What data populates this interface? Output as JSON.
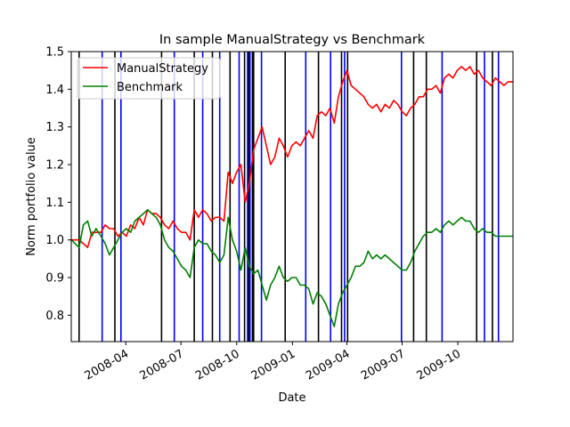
{
  "chart_data": {
    "type": "line",
    "title": "In sample ManualStrategy vs Benchmark",
    "xlabel": "Date",
    "ylabel": "Norm portfolio value",
    "xlim": [
      "2008-01-02",
      "2009-12-31"
    ],
    "ylim": [
      0.73,
      1.5
    ],
    "grid": false,
    "legend": "upper-left",
    "x_ticks": [
      {
        "date": "2008-04-01",
        "label": "2008-04"
      },
      {
        "date": "2008-07-01",
        "label": "2008-07"
      },
      {
        "date": "2008-10-01",
        "label": "2008-10"
      },
      {
        "date": "2009-01-01",
        "label": "2009-01"
      },
      {
        "date": "2009-04-01",
        "label": "2009-04"
      },
      {
        "date": "2009-07-01",
        "label": "2009-07"
      },
      {
        "date": "2009-10-01",
        "label": "2009-10"
      }
    ],
    "y_ticks": [
      {
        "value": 0.8,
        "label": "0.8"
      },
      {
        "value": 0.9,
        "label": "0.9"
      },
      {
        "value": 1.0,
        "label": "1.0"
      },
      {
        "value": 1.1,
        "label": "1.1"
      },
      {
        "value": 1.2,
        "label": "1.2"
      },
      {
        "value": 1.3,
        "label": "1.3"
      },
      {
        "value": 1.4,
        "label": "1.4"
      },
      {
        "value": 1.5,
        "label": "1.5"
      }
    ],
    "series": [
      {
        "name": "ManualStrategy",
        "color": "#ff0000",
        "points": [
          [
            "2008-01-02",
            1.0
          ],
          [
            "2008-01-15",
            1.0
          ],
          [
            "2008-01-22",
            0.99
          ],
          [
            "2008-01-29",
            0.98
          ],
          [
            "2008-02-05",
            1.02
          ],
          [
            "2008-02-12",
            1.02
          ],
          [
            "2008-02-20",
            1.02
          ],
          [
            "2008-02-27",
            1.04
          ],
          [
            "2008-03-05",
            1.03
          ],
          [
            "2008-03-12",
            1.03
          ],
          [
            "2008-03-19",
            1.01
          ],
          [
            "2008-03-26",
            1.02
          ],
          [
            "2008-04-02",
            1.01
          ],
          [
            "2008-04-09",
            1.04
          ],
          [
            "2008-04-16",
            1.03
          ],
          [
            "2008-04-23",
            1.06
          ],
          [
            "2008-04-30",
            1.04
          ],
          [
            "2008-05-07",
            1.08
          ],
          [
            "2008-05-14",
            1.07
          ],
          [
            "2008-05-21",
            1.07
          ],
          [
            "2008-05-28",
            1.06
          ],
          [
            "2008-06-04",
            1.04
          ],
          [
            "2008-06-11",
            1.03
          ],
          [
            "2008-06-18",
            1.05
          ],
          [
            "2008-06-25",
            1.03
          ],
          [
            "2008-07-02",
            1.02
          ],
          [
            "2008-07-09",
            1.02
          ],
          [
            "2008-07-16",
            1.0
          ],
          [
            "2008-07-23",
            1.08
          ],
          [
            "2008-07-30",
            1.06
          ],
          [
            "2008-08-06",
            1.08
          ],
          [
            "2008-08-13",
            1.07
          ],
          [
            "2008-08-20",
            1.05
          ],
          [
            "2008-08-27",
            1.06
          ],
          [
            "2008-09-03",
            1.06
          ],
          [
            "2008-09-10",
            1.05
          ],
          [
            "2008-09-17",
            1.18
          ],
          [
            "2008-09-24",
            1.15
          ],
          [
            "2008-10-01",
            1.18
          ],
          [
            "2008-10-08",
            1.2
          ],
          [
            "2008-10-15",
            1.1
          ],
          [
            "2008-10-22",
            1.15
          ],
          [
            "2008-10-29",
            1.24
          ],
          [
            "2008-11-05",
            1.27
          ],
          [
            "2008-11-12",
            1.3
          ],
          [
            "2008-11-19",
            1.25
          ],
          [
            "2008-11-26",
            1.2
          ],
          [
            "2008-12-03",
            1.22
          ],
          [
            "2008-12-10",
            1.27
          ],
          [
            "2008-12-17",
            1.25
          ],
          [
            "2008-12-24",
            1.22
          ],
          [
            "2008-12-31",
            1.25
          ],
          [
            "2009-01-07",
            1.26
          ],
          [
            "2009-01-14",
            1.25
          ],
          [
            "2009-01-21",
            1.27
          ],
          [
            "2009-01-28",
            1.29
          ],
          [
            "2009-02-04",
            1.27
          ],
          [
            "2009-02-11",
            1.33
          ],
          [
            "2009-02-18",
            1.34
          ],
          [
            "2009-02-25",
            1.33
          ],
          [
            "2009-03-04",
            1.35
          ],
          [
            "2009-03-11",
            1.31
          ],
          [
            "2009-03-18",
            1.38
          ],
          [
            "2009-03-25",
            1.42
          ],
          [
            "2009-04-01",
            1.45
          ],
          [
            "2009-04-08",
            1.41
          ],
          [
            "2009-04-15",
            1.4
          ],
          [
            "2009-04-22",
            1.39
          ],
          [
            "2009-04-29",
            1.38
          ],
          [
            "2009-05-06",
            1.36
          ],
          [
            "2009-05-13",
            1.35
          ],
          [
            "2009-05-20",
            1.36
          ],
          [
            "2009-05-27",
            1.34
          ],
          [
            "2009-06-03",
            1.36
          ],
          [
            "2009-06-10",
            1.35
          ],
          [
            "2009-06-17",
            1.37
          ],
          [
            "2009-06-24",
            1.36
          ],
          [
            "2009-07-01",
            1.34
          ],
          [
            "2009-07-08",
            1.33
          ],
          [
            "2009-07-15",
            1.35
          ],
          [
            "2009-07-22",
            1.36
          ],
          [
            "2009-07-29",
            1.38
          ],
          [
            "2009-08-05",
            1.38
          ],
          [
            "2009-08-12",
            1.4
          ],
          [
            "2009-08-19",
            1.4
          ],
          [
            "2009-08-26",
            1.41
          ],
          [
            "2009-09-02",
            1.39
          ],
          [
            "2009-09-09",
            1.43
          ],
          [
            "2009-09-16",
            1.44
          ],
          [
            "2009-09-23",
            1.43
          ],
          [
            "2009-09-30",
            1.45
          ],
          [
            "2009-10-07",
            1.46
          ],
          [
            "2009-10-14",
            1.45
          ],
          [
            "2009-10-21",
            1.46
          ],
          [
            "2009-10-28",
            1.44
          ],
          [
            "2009-11-04",
            1.45
          ],
          [
            "2009-11-11",
            1.43
          ],
          [
            "2009-11-18",
            1.42
          ],
          [
            "2009-11-25",
            1.41
          ],
          [
            "2009-12-02",
            1.43
          ],
          [
            "2009-12-09",
            1.42
          ],
          [
            "2009-12-16",
            1.41
          ],
          [
            "2009-12-23",
            1.42
          ],
          [
            "2009-12-31",
            1.42
          ]
        ]
      },
      {
        "name": "Benchmark",
        "color": "#008000",
        "points": [
          [
            "2008-01-02",
            1.0
          ],
          [
            "2008-01-15",
            0.98
          ],
          [
            "2008-01-22",
            1.04
          ],
          [
            "2008-01-29",
            1.05
          ],
          [
            "2008-02-05",
            1.01
          ],
          [
            "2008-02-12",
            1.03
          ],
          [
            "2008-02-20",
            1.01
          ],
          [
            "2008-02-27",
            0.99
          ],
          [
            "2008-03-05",
            0.96
          ],
          [
            "2008-03-12",
            0.98
          ],
          [
            "2008-03-19",
            1.0
          ],
          [
            "2008-03-26",
            1.02
          ],
          [
            "2008-04-02",
            1.03
          ],
          [
            "2008-04-09",
            1.02
          ],
          [
            "2008-04-16",
            1.05
          ],
          [
            "2008-04-23",
            1.06
          ],
          [
            "2008-04-30",
            1.07
          ],
          [
            "2008-05-07",
            1.08
          ],
          [
            "2008-05-14",
            1.07
          ],
          [
            "2008-05-21",
            1.06
          ],
          [
            "2008-05-28",
            1.04
          ],
          [
            "2008-06-04",
            1.0
          ],
          [
            "2008-06-11",
            0.98
          ],
          [
            "2008-06-18",
            0.97
          ],
          [
            "2008-06-25",
            0.95
          ],
          [
            "2008-07-02",
            0.93
          ],
          [
            "2008-07-09",
            0.92
          ],
          [
            "2008-07-16",
            0.9
          ],
          [
            "2008-07-23",
            0.98
          ],
          [
            "2008-07-30",
            1.0
          ],
          [
            "2008-08-06",
            0.99
          ],
          [
            "2008-08-13",
            0.99
          ],
          [
            "2008-08-20",
            0.97
          ],
          [
            "2008-08-27",
            0.96
          ],
          [
            "2008-09-03",
            0.94
          ],
          [
            "2008-09-10",
            0.96
          ],
          [
            "2008-09-17",
            1.06
          ],
          [
            "2008-09-24",
            1.0
          ],
          [
            "2008-10-01",
            0.97
          ],
          [
            "2008-10-08",
            0.92
          ],
          [
            "2008-10-15",
            0.98
          ],
          [
            "2008-10-22",
            0.93
          ],
          [
            "2008-10-29",
            0.91
          ],
          [
            "2008-11-05",
            0.92
          ],
          [
            "2008-11-12",
            0.88
          ],
          [
            "2008-11-19",
            0.84
          ],
          [
            "2008-11-26",
            0.88
          ],
          [
            "2008-12-03",
            0.9
          ],
          [
            "2008-12-10",
            0.93
          ],
          [
            "2008-12-17",
            0.9
          ],
          [
            "2008-12-24",
            0.89
          ],
          [
            "2008-12-31",
            0.9
          ],
          [
            "2009-01-07",
            0.9
          ],
          [
            "2009-01-14",
            0.88
          ],
          [
            "2009-01-21",
            0.88
          ],
          [
            "2009-01-28",
            0.87
          ],
          [
            "2009-02-04",
            0.83
          ],
          [
            "2009-02-11",
            0.86
          ],
          [
            "2009-02-18",
            0.85
          ],
          [
            "2009-02-25",
            0.83
          ],
          [
            "2009-03-04",
            0.8
          ],
          [
            "2009-03-11",
            0.77
          ],
          [
            "2009-03-18",
            0.83
          ],
          [
            "2009-03-25",
            0.86
          ],
          [
            "2009-04-01",
            0.88
          ],
          [
            "2009-04-08",
            0.9
          ],
          [
            "2009-04-15",
            0.93
          ],
          [
            "2009-04-22",
            0.93
          ],
          [
            "2009-04-29",
            0.94
          ],
          [
            "2009-05-06",
            0.97
          ],
          [
            "2009-05-13",
            0.95
          ],
          [
            "2009-05-20",
            0.96
          ],
          [
            "2009-05-27",
            0.95
          ],
          [
            "2009-06-03",
            0.96
          ],
          [
            "2009-06-10",
            0.95
          ],
          [
            "2009-06-17",
            0.94
          ],
          [
            "2009-06-24",
            0.93
          ],
          [
            "2009-07-01",
            0.92
          ],
          [
            "2009-07-08",
            0.92
          ],
          [
            "2009-07-15",
            0.94
          ],
          [
            "2009-07-22",
            0.97
          ],
          [
            "2009-07-29",
            0.99
          ],
          [
            "2009-08-05",
            1.01
          ],
          [
            "2009-08-12",
            1.02
          ],
          [
            "2009-08-19",
            1.02
          ],
          [
            "2009-08-26",
            1.03
          ],
          [
            "2009-09-02",
            1.02
          ],
          [
            "2009-09-09",
            1.04
          ],
          [
            "2009-09-16",
            1.05
          ],
          [
            "2009-09-23",
            1.04
          ],
          [
            "2009-09-30",
            1.05
          ],
          [
            "2009-10-07",
            1.06
          ],
          [
            "2009-10-14",
            1.05
          ],
          [
            "2009-10-21",
            1.05
          ],
          [
            "2009-10-28",
            1.03
          ],
          [
            "2009-11-04",
            1.02
          ],
          [
            "2009-11-11",
            1.03
          ],
          [
            "2009-11-18",
            1.02
          ],
          [
            "2009-11-25",
            1.02
          ],
          [
            "2009-12-02",
            1.01
          ],
          [
            "2009-12-09",
            1.01
          ],
          [
            "2009-12-16",
            1.01
          ],
          [
            "2009-12-23",
            1.01
          ],
          [
            "2009-12-31",
            1.01
          ]
        ]
      }
    ],
    "vertical_lines": [
      {
        "date": "2008-01-15",
        "color": "#000000"
      },
      {
        "date": "2008-02-22",
        "color": "#0000ff"
      },
      {
        "date": "2008-03-14",
        "color": "#000000"
      },
      {
        "date": "2008-03-24",
        "color": "#0000ff"
      },
      {
        "date": "2008-05-30",
        "color": "#000000"
      },
      {
        "date": "2008-06-20",
        "color": "#0000ff"
      },
      {
        "date": "2008-07-23",
        "color": "#000000"
      },
      {
        "date": "2008-08-06",
        "color": "#0000ff"
      },
      {
        "date": "2008-08-22",
        "color": "#000000"
      },
      {
        "date": "2008-09-03",
        "color": "#0000ff"
      },
      {
        "date": "2008-09-20",
        "color": "#000000"
      },
      {
        "date": "2008-10-05",
        "color": "#0000ff"
      },
      {
        "date": "2008-10-14",
        "color": "#000000"
      },
      {
        "date": "2008-10-19",
        "color": "#0000ff"
      },
      {
        "date": "2008-10-21",
        "color": "#000000"
      },
      {
        "date": "2008-10-23",
        "color": "#0000ff"
      },
      {
        "date": "2008-10-27",
        "color": "#000000"
      },
      {
        "date": "2008-10-29",
        "color": "#000000"
      },
      {
        "date": "2008-11-11",
        "color": "#0000ff"
      },
      {
        "date": "2008-12-20",
        "color": "#000000"
      },
      {
        "date": "2009-01-23",
        "color": "#0000ff"
      },
      {
        "date": "2009-02-13",
        "color": "#000000"
      },
      {
        "date": "2009-03-05",
        "color": "#0000ff"
      },
      {
        "date": "2009-03-23",
        "color": "#000000"
      },
      {
        "date": "2009-03-28",
        "color": "#0000ff"
      },
      {
        "date": "2009-04-02",
        "color": "#000000"
      },
      {
        "date": "2009-06-30",
        "color": "#0000ff"
      },
      {
        "date": "2009-07-20",
        "color": "#000000"
      },
      {
        "date": "2009-08-10",
        "color": "#000000"
      },
      {
        "date": "2009-09-05",
        "color": "#0000ff"
      },
      {
        "date": "2009-11-01",
        "color": "#000000"
      },
      {
        "date": "2009-11-14",
        "color": "#0000ff"
      },
      {
        "date": "2009-11-27",
        "color": "#000000"
      },
      {
        "date": "2009-12-07",
        "color": "#0000ff"
      }
    ]
  }
}
